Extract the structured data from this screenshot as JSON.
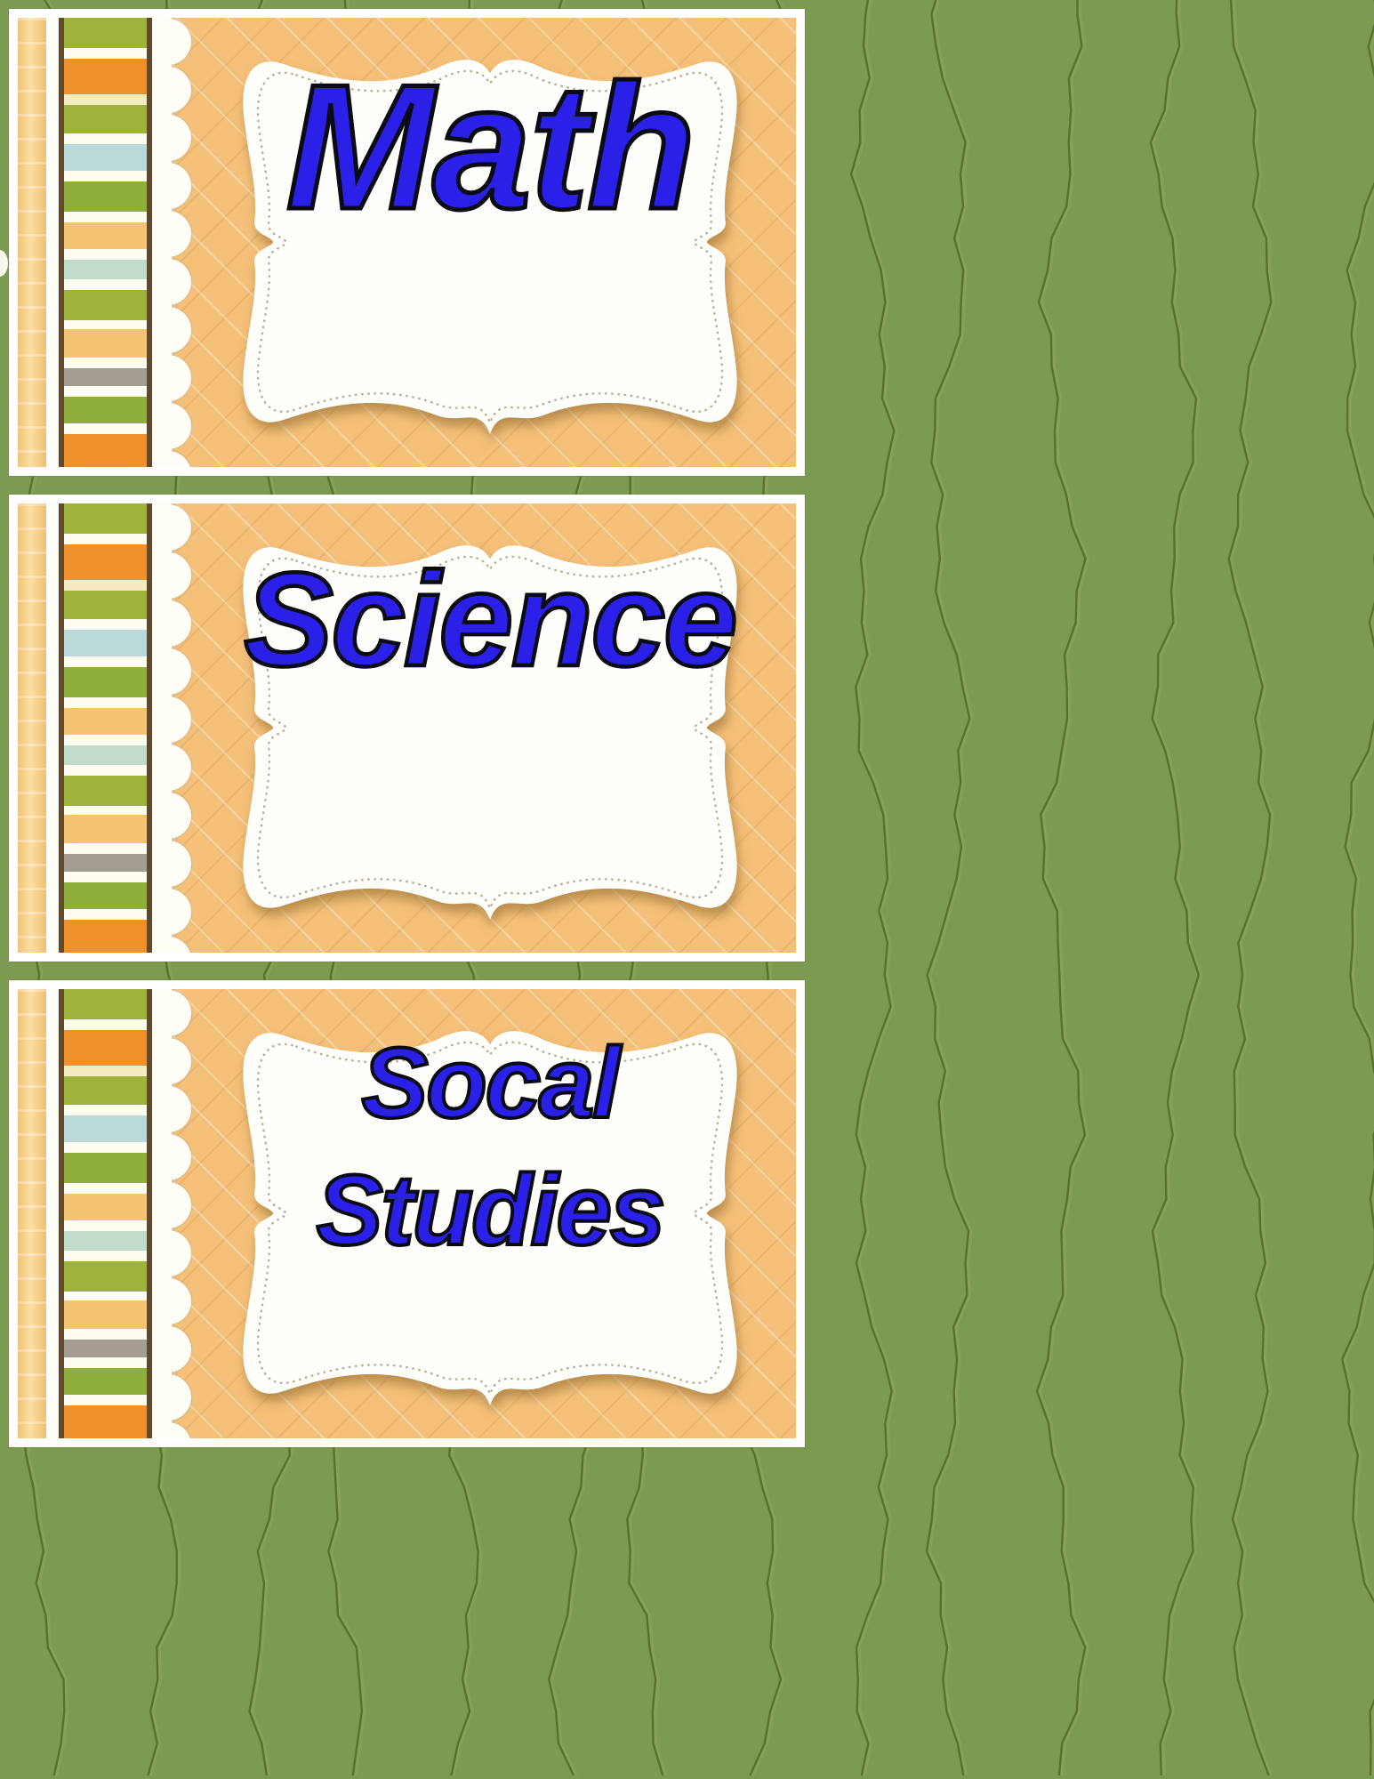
{
  "title": "Classroom subject label cards",
  "cards": [
    {
      "name": "math",
      "lines": [
        "Math"
      ]
    },
    {
      "name": "science",
      "lines": [
        "Science"
      ]
    },
    {
      "name": "social-studies",
      "lines": [
        "Socal",
        "Studies"
      ]
    }
  ],
  "colors": {
    "background_green": "#7d9b50",
    "thread_dark_green": "#54702c",
    "card_border_white": "#ffffff",
    "quilt_panel_orange": "#f4c07a",
    "label_blue": "#2a20e8",
    "label_outline": "#0b0b14",
    "stripe_olive": "#9fb23a",
    "stripe_orange": "#f0912b",
    "stripe_light_blue": "#bcd9da",
    "stripe_tan": "#f5c473",
    "stripe_teal": "#c2dccc",
    "stripe_gray": "#a49e92",
    "stripe_brown_border": "#5e4a30"
  }
}
